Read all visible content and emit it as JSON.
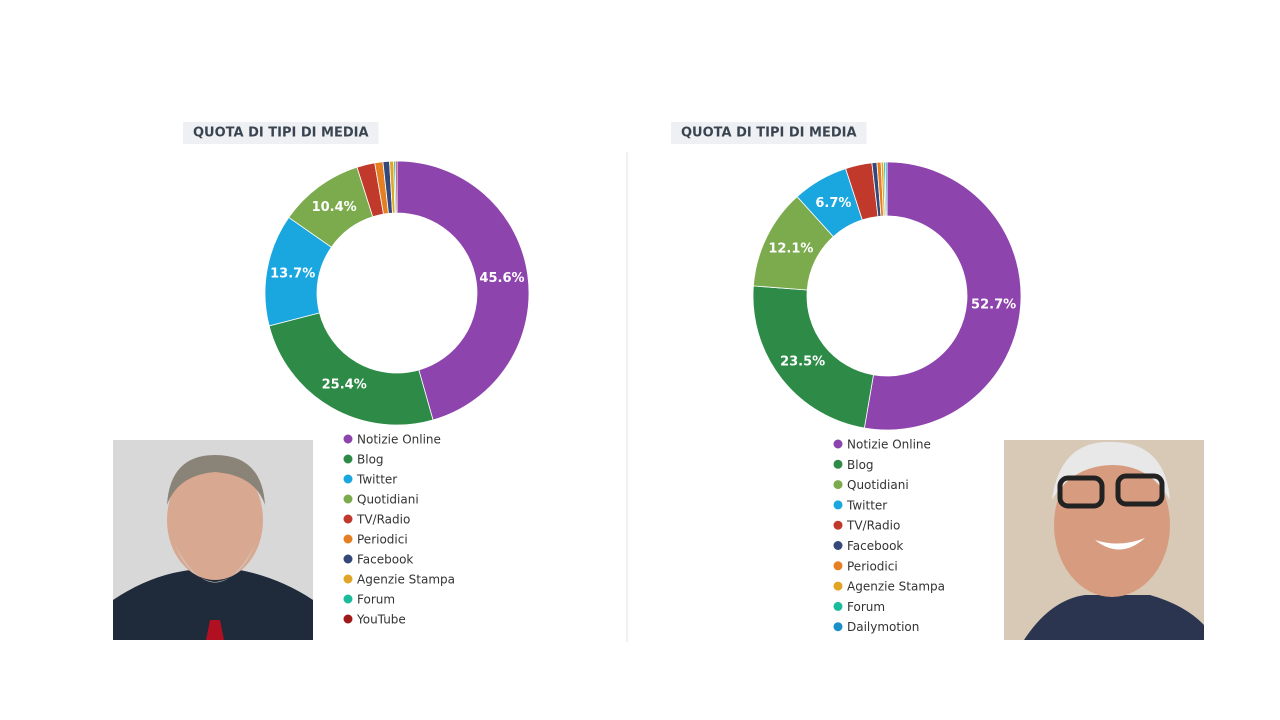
{
  "chart_data": [
    {
      "type": "donut",
      "title": "QUOTA DI TIPI DI MEDIA",
      "categories": [
        "Notizie Online",
        "Blog",
        "Twitter",
        "Quotidiani",
        "TV/Radio",
        "Periodici",
        "Facebook",
        "Agenzie Stampa",
        "Forum",
        "YouTube"
      ],
      "values": [
        45.6,
        25.4,
        13.7,
        10.4,
        2.2,
        1.0,
        0.8,
        0.5,
        0.2,
        0.2
      ],
      "value_labels": [
        "45.6%",
        "25.4%",
        "13.7%",
        "10.4%",
        null,
        null,
        null,
        null,
        null,
        null
      ],
      "colors": [
        "#8e44ad",
        "#2e8b47",
        "#1aa7e0",
        "#7cab4e",
        "#c0392b",
        "#e67e22",
        "#34497a",
        "#e0a526",
        "#1abc9c",
        "#a01818"
      ]
    },
    {
      "type": "donut",
      "title": "QUOTA DI TIPI DI MEDIA",
      "categories": [
        "Notizie Online",
        "Blog",
        "Quotidiani",
        "Twitter",
        "TV/Radio",
        "Facebook",
        "Periodici",
        "Agenzie Stampa",
        "Forum",
        "Dailymotion"
      ],
      "values": [
        52.7,
        23.5,
        12.1,
        6.7,
        3.2,
        0.6,
        0.5,
        0.3,
        0.2,
        0.2
      ],
      "value_labels": [
        "52.7%",
        "23.5%",
        "12.1%",
        "6.7%",
        null,
        null,
        null,
        null,
        null,
        null
      ],
      "colors": [
        "#8e44ad",
        "#2e8b47",
        "#7cab4e",
        "#1aa7e0",
        "#c0392b",
        "#34497a",
        "#e67e22",
        "#e0a526",
        "#1abc9c",
        "#1a8fc9"
      ]
    }
  ]
}
